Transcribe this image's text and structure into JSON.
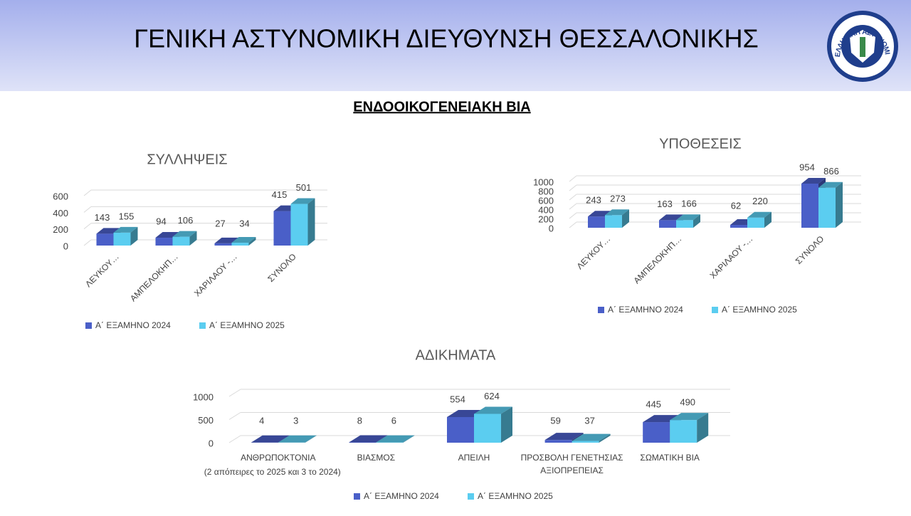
{
  "header": {
    "title": "ΓΕΝΙΚΗ ΑΣΤΥΝΟΜΙΚΗ ΔΙΕΥΘΥΝΣΗ ΘΕΣΣΑΛΟΝΙΚΗΣ",
    "logo_text": "ΕΛΛΗΝΙΚΗ ΑΣΤΥΝΟΜΙΑ"
  },
  "subtitle": "ΕΝΔΟΟΙΚΟΓΕΝΕΙΑΚΗ ΒΙΑ",
  "chart_data": [
    {
      "type": "bar3d",
      "title": "ΣΥΛΛΗΨΕΙΣ",
      "categories": [
        "ΛΕΥΚΟΥ…",
        "ΑΜΠΕΛΟΚΗΠ…",
        "ΧΑΡΙΛΑΟΥ -…",
        "ΣΥΝΟΛΟ"
      ],
      "series": [
        {
          "name": "Α΄ ΕΞΑΜΗΝΟ 2024",
          "color": "#4a5fc8",
          "values": [
            143,
            94,
            27,
            415
          ]
        },
        {
          "name": "Α΄ ΕΞΑΜΗΝΟ 2025",
          "color": "#5bcdf0",
          "values": [
            155,
            106,
            34,
            501
          ]
        }
      ],
      "ylim": [
        0,
        600
      ],
      "yticks": [
        0,
        200,
        400,
        600
      ],
      "grid": true,
      "legend": "bottom"
    },
    {
      "type": "bar3d",
      "title": "ΥΠΟΘΕΣΕΙΣ",
      "categories": [
        "ΛΕΥΚΟΥ…",
        "ΑΜΠΕΛΟΚΗΠ…",
        "ΧΑΡΙΛΑΟΥ -…",
        "ΣΥΝΟΛΟ"
      ],
      "series": [
        {
          "name": "Α΄ ΕΞΑΜΗΝΟ 2024",
          "color": "#4a5fc8",
          "values": [
            243,
            163,
            62,
            954
          ]
        },
        {
          "name": "Α΄ ΕΞΑΜΗΝΟ 2025",
          "color": "#5bcdf0",
          "values": [
            273,
            166,
            220,
            866
          ]
        }
      ],
      "ylim": [
        0,
        1000
      ],
      "yticks": [
        0,
        200,
        400,
        600,
        800,
        1000
      ],
      "grid": true,
      "legend": "bottom"
    },
    {
      "type": "bar3d",
      "title": "ΑΔΙΚΗΜΑΤΑ",
      "categories": [
        "ΑΝΘΡΩΠΟΚΤΟΝΙΑ",
        "ΒΙΑΣΜΟΣ",
        "ΑΠΕΙΛΗ",
        "ΠΡΟΣΒΟΛΗ ΓΕΝΕΤΗΣΙΑΣ ΑΞΙΟΠΡΕΠΕΙΑΣ",
        "ΣΩΜΑΤΙΚΗ ΒΙΑ"
      ],
      "annotation": "(2 απόπειρες το 2025 και 3 το 2024)",
      "series": [
        {
          "name": "Α΄ ΕΞΑΜΗΝΟ 2024",
          "color": "#4a5fc8",
          "values": [
            4,
            8,
            554,
            59,
            445
          ]
        },
        {
          "name": "Α΄ ΕΞΑΜΗΝΟ 2025",
          "color": "#5bcdf0",
          "values": [
            3,
            6,
            624,
            37,
            490
          ]
        }
      ],
      "ylim": [
        0,
        1000
      ],
      "yticks": [
        0,
        500,
        1000
      ],
      "grid": true,
      "legend": "bottom"
    }
  ]
}
